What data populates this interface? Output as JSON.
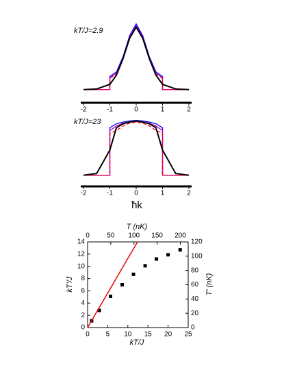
{
  "chart_data": [
    {
      "type": "line",
      "title": "kT/J=2.9",
      "x": [
        -2,
        -1.5,
        -1,
        -1,
        -0.75,
        -0.5,
        -0.25,
        0,
        0.25,
        0.5,
        0.75,
        1,
        1,
        1.5,
        2
      ],
      "xlim": [
        -2,
        2
      ],
      "xticks": [
        -2,
        -1,
        0,
        1,
        2
      ],
      "ylim": [
        -0.2,
        1.05
      ],
      "series": [
        {
          "color": "#0000ff",
          "style": "solid",
          "values": [
            0,
            0,
            0,
            0.2,
            0.27,
            0.5,
            0.82,
            1.0,
            0.82,
            0.5,
            0.27,
            0.2,
            0,
            0,
            0
          ]
        },
        {
          "color": "#cc00cc",
          "style": "solid",
          "values": [
            0,
            0,
            0,
            0.18,
            0.25,
            0.48,
            0.8,
            0.97,
            0.8,
            0.48,
            0.25,
            0.18,
            0,
            0,
            0
          ]
        },
        {
          "color": "#ff0000",
          "style": "dashed",
          "values": [
            0,
            0,
            0,
            0.17,
            0.24,
            0.47,
            0.79,
            0.96,
            0.79,
            0.47,
            0.24,
            0.17,
            0,
            0,
            0
          ]
        },
        {
          "color": "#000000",
          "style": "solid",
          "values": [
            0,
            0.01,
            0.08,
            0.08,
            0.22,
            0.47,
            0.78,
            0.95,
            0.78,
            0.47,
            0.22,
            0.08,
            0.08,
            0.01,
            0
          ]
        }
      ]
    },
    {
      "type": "line",
      "title": "kT/J=23",
      "xlabel": "ħk",
      "x": [
        -2,
        -1.5,
        -1,
        -1,
        -0.75,
        -0.5,
        -0.25,
        0,
        0.25,
        0.5,
        0.75,
        1,
        1,
        1.5,
        2
      ],
      "xlim": [
        -2,
        2
      ],
      "xticks": [
        -2,
        -1,
        0,
        1,
        2
      ],
      "ylim": [
        -0.2,
        1.05
      ],
      "series": [
        {
          "color": "#0000ff",
          "style": "solid",
          "values": [
            0,
            0,
            0,
            0.85,
            0.92,
            0.95,
            0.97,
            0.98,
            0.97,
            0.95,
            0.92,
            0.85,
            0,
            0,
            0
          ]
        },
        {
          "color": "#cc00cc",
          "style": "solid",
          "values": [
            0,
            0,
            0,
            0.8,
            0.88,
            0.93,
            0.95,
            0.96,
            0.95,
            0.93,
            0.88,
            0.8,
            0,
            0,
            0
          ]
        },
        {
          "color": "#ff0000",
          "style": "dashed",
          "values": [
            0,
            0,
            0,
            0.75,
            0.8,
            0.88,
            0.93,
            0.95,
            0.93,
            0.88,
            0.8,
            0.75,
            0,
            0,
            0
          ]
        },
        {
          "color": "#000000",
          "style": "solid",
          "values": [
            0,
            0.03,
            0.45,
            0.45,
            0.85,
            0.92,
            0.95,
            0.97,
            0.95,
            0.92,
            0.85,
            0.45,
            0.45,
            0.03,
            0
          ]
        }
      ]
    },
    {
      "type": "scatter",
      "xlabel": "kT/J",
      "ylabel": "kT'/J",
      "x2label": "T (nK)",
      "y2label": "T' (nK)",
      "xlim": [
        0,
        25
      ],
      "xticks": [
        0,
        5,
        10,
        15,
        20,
        25
      ],
      "ylim": [
        0,
        14
      ],
      "yticks": [
        0,
        2,
        4,
        6,
        8,
        10,
        12,
        14
      ],
      "x2lim": [
        0,
        217
      ],
      "x2ticks": [
        0,
        50,
        100,
        150,
        200
      ],
      "y2lim": [
        0,
        120
      ],
      "y2ticks": [
        0,
        20,
        40,
        60,
        80,
        100,
        120
      ],
      "series": [
        {
          "mode": "markers",
          "color": "#000000",
          "x": [
            1,
            2.9,
            5.7,
            8.6,
            11.4,
            14.3,
            17.1,
            20,
            23
          ],
          "values": [
            1.1,
            2.8,
            5.1,
            7.0,
            8.7,
            10.1,
            11.2,
            11.9,
            12.7
          ]
        },
        {
          "mode": "line",
          "color": "#ee0000",
          "x": [
            0,
            12.4
          ],
          "values": [
            0,
            14
          ]
        }
      ]
    }
  ]
}
